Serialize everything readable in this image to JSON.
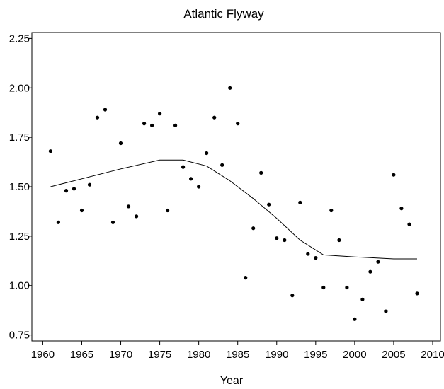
{
  "chart_data": {
    "type": "scatter",
    "title": "Atlantic Flyway",
    "xlabel": "Year",
    "ylabel": "",
    "xlim": [
      1960,
      2010
    ],
    "ylim": [
      0.75,
      2.25
    ],
    "xticks": [
      1960,
      1965,
      1970,
      1975,
      1980,
      1985,
      1990,
      1995,
      2000,
      2005,
      2010
    ],
    "yticks": [
      0.75,
      1.0,
      1.25,
      1.5,
      1.75,
      2.0,
      2.25
    ],
    "ytick_labels": [
      "0.75",
      "1.00",
      "1.25",
      "1.50",
      "1.75",
      "2.00",
      "2.25"
    ],
    "grid": false,
    "legend": "none",
    "points": {
      "x": [
        1961,
        1962,
        1963,
        1964,
        1965,
        1966,
        1967,
        1968,
        1969,
        1970,
        1971,
        1972,
        1973,
        1974,
        1975,
        1976,
        1977,
        1978,
        1979,
        1980,
        1981,
        1982,
        1983,
        1984,
        1985,
        1986,
        1987,
        1988,
        1989,
        1990,
        1991,
        1992,
        1993,
        1994,
        1995,
        1996,
        1997,
        1998,
        1999,
        2000,
        2001,
        2002,
        2003,
        2004,
        2005,
        2006,
        2007,
        2008
      ],
      "y": [
        1.68,
        1.32,
        1.48,
        1.49,
        1.38,
        1.51,
        1.85,
        1.89,
        1.32,
        1.72,
        1.4,
        1.35,
        1.82,
        1.81,
        1.87,
        1.38,
        1.81,
        1.6,
        1.54,
        1.5,
        1.67,
        1.85,
        1.61,
        2.0,
        1.82,
        1.04,
        1.29,
        1.57,
        1.41,
        1.24,
        1.23,
        0.95,
        1.42,
        1.16,
        1.14,
        0.99,
        1.38,
        1.23,
        0.99,
        0.83,
        0.93,
        1.07,
        1.12,
        0.87,
        1.56,
        1.39,
        1.31,
        0.96
      ]
    },
    "trend_line": {
      "x": [
        1961,
        1965,
        1970,
        1975,
        1978,
        1981,
        1984,
        1987,
        1990,
        1993,
        1996,
        2000,
        2005,
        2008
      ],
      "y": [
        1.5,
        1.54,
        1.59,
        1.635,
        1.635,
        1.605,
        1.53,
        1.44,
        1.34,
        1.23,
        1.155,
        1.145,
        1.135,
        1.135
      ]
    }
  }
}
